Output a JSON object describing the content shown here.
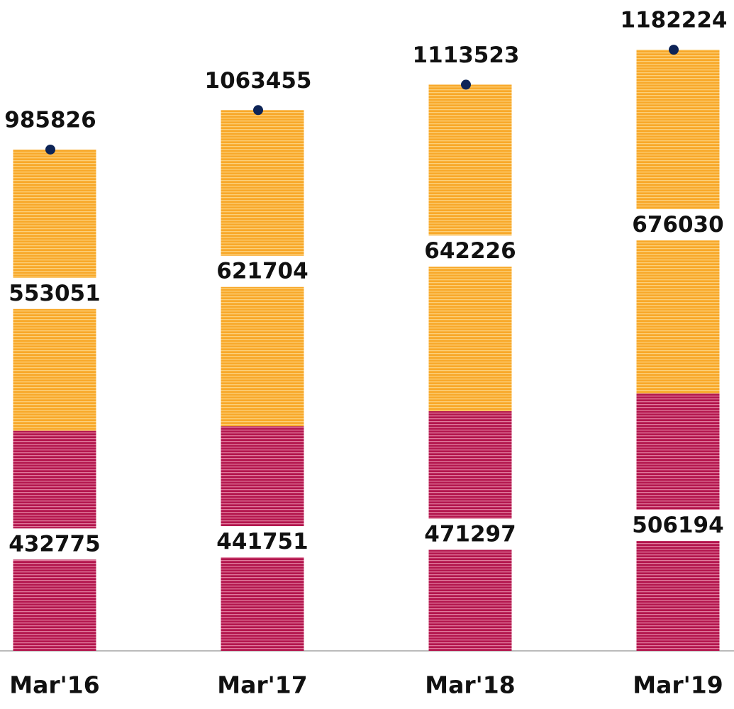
{
  "chart_data": {
    "type": "bar",
    "stacked": true,
    "categories": [
      "Mar'16",
      "Mar'17",
      "Mar'18",
      "Mar'19"
    ],
    "series": [
      {
        "color": "#b3154d",
        "values": [
          432775,
          441751,
          471297,
          506194
        ]
      },
      {
        "color": "#f8a829",
        "values": [
          553051,
          621704,
          642226,
          676030
        ]
      }
    ],
    "totals": [
      985826,
      1063455,
      1113523,
      1182224
    ],
    "totals_color": "#0d2457",
    "ylim": [
      0,
      1280000
    ]
  }
}
